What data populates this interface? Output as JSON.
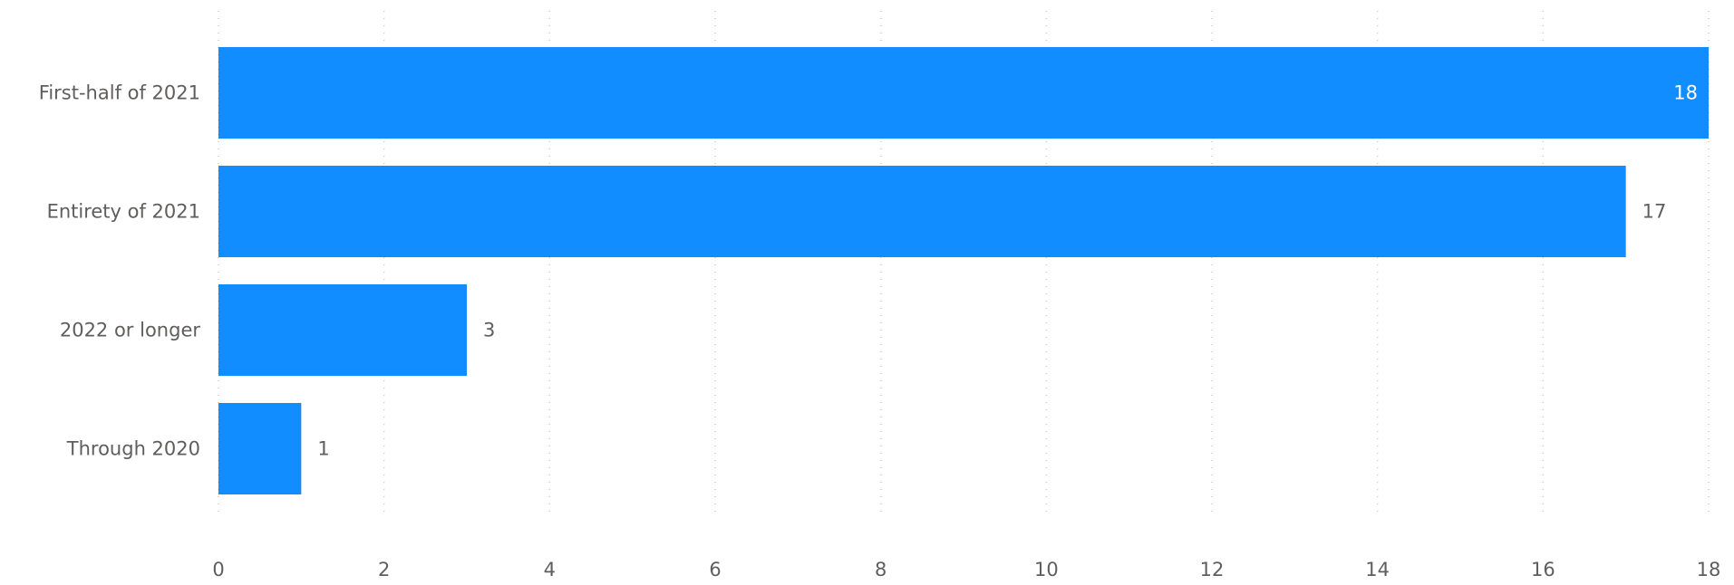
{
  "chart_data": {
    "type": "bar",
    "orientation": "horizontal",
    "categories": [
      "First-half of 2021",
      "Entirety of 2021",
      "2022 or longer",
      "Through 2020"
    ],
    "values": [
      18,
      17,
      3,
      1
    ],
    "data_labels": [
      "18",
      "17",
      "3",
      "1"
    ],
    "xticks": [
      "0",
      "2",
      "4",
      "6",
      "8",
      "10",
      "12",
      "14",
      "16",
      "18"
    ],
    "xlim": [
      0,
      18
    ],
    "grid": "vertical dotted",
    "legend": "none",
    "title": "",
    "xlabel": "",
    "ylabel": ""
  },
  "colors": {
    "bar": "#118dff",
    "label_text": "#605e5c",
    "label_inside": "#ffffff",
    "grid": "#c8c8c8"
  }
}
